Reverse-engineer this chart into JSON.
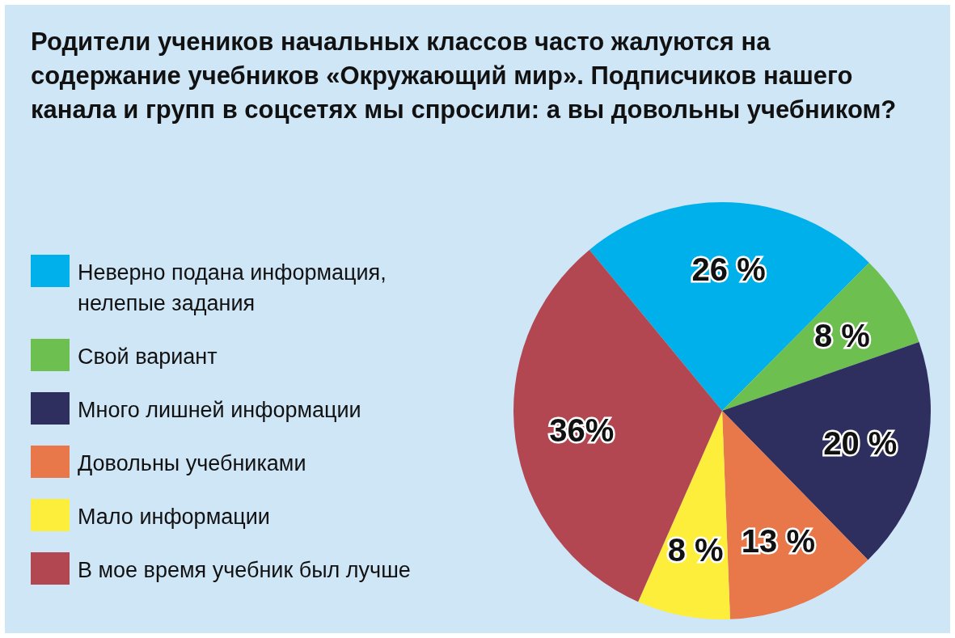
{
  "chart_data": {
    "type": "pie",
    "title": "Родители учеников начальных классов часто жалуются на содержание учебников «Окружающий мир». Подписчиков нашего канала и групп в соцсетях мы спросили: а вы довольны учебником?",
    "categories": [
      "Неверно подана информация, нелепые задания",
      "Свой вариант",
      "Много лишней информации",
      "Довольны учебниками",
      "Мало информации",
      "В мое время учебник был лучше"
    ],
    "values": [
      26,
      8,
      20,
      13,
      8,
      36
    ],
    "value_labels": [
      "26 %",
      "8 %",
      "20 %",
      "13 %",
      "8 %",
      "36%"
    ],
    "colors": [
      "#00b0ea",
      "#6dbf4f",
      "#2e2f5f",
      "#e8774a",
      "#fcee3a",
      "#b24651"
    ],
    "legend": "left"
  }
}
